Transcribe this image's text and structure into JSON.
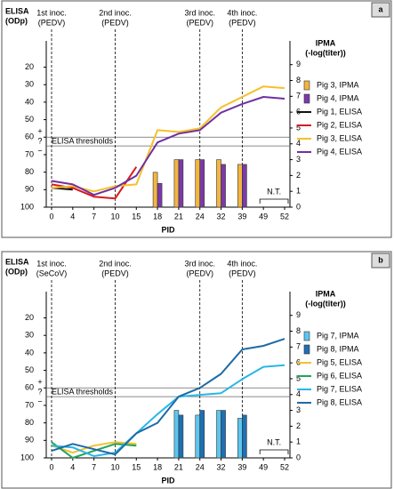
{
  "chart_data": [
    {
      "type": "line",
      "panel": "a",
      "categories": [
        "0",
        "4",
        "7",
        "10",
        "15",
        "18",
        "21",
        "24",
        "32",
        "39",
        "49",
        "52"
      ],
      "xlabel": "PID",
      "ylabel_lines": [
        "ELISA",
        "(ODp)"
      ],
      "y2label_lines": [
        "IPMA",
        "(-log(titer))"
      ],
      "ylim": [
        100,
        5
      ],
      "yticks": [
        20,
        30,
        40,
        50,
        60,
        70,
        80,
        90,
        100
      ],
      "y2lim": [
        0,
        10.5
      ],
      "y2ticks": [
        0,
        1,
        2,
        3,
        4,
        5,
        6,
        7,
        8,
        9
      ],
      "inoculations": [
        {
          "x": "0",
          "label": "1st inoc.",
          "agent": "(PEDV)"
        },
        {
          "x": "10",
          "label": "2nd inoc.",
          "agent": "(PEDV)"
        },
        {
          "x": "24",
          "label": "3rd inoc.",
          "agent": "(PEDV)"
        },
        {
          "x": "39",
          "label": "4th inoc.",
          "agent": "(PEDV)"
        }
      ],
      "thresholds": [
        60,
        65
      ],
      "threshold_label": "ELISA thresholds",
      "threshold_signs": [
        "+",
        "?",
        "−"
      ],
      "not_tested": {
        "text": "N.T.",
        "from": "49",
        "to": "52"
      },
      "legend": "right",
      "series": [
        {
          "name": "Pig 3, IPMA",
          "type": "bar",
          "axis": "y2",
          "color": "#f2b640",
          "values": [
            null,
            null,
            null,
            null,
            null,
            2.2,
            3,
            3,
            3,
            2.7,
            null,
            null
          ]
        },
        {
          "name": "Pig 4, IPMA",
          "type": "bar",
          "axis": "y2",
          "color": "#7a3aa8",
          "values": [
            null,
            null,
            null,
            null,
            null,
            1.5,
            3,
            3,
            2.7,
            2.7,
            null,
            null
          ]
        },
        {
          "name": "Pig 1, ELISA",
          "color": "#111111",
          "values": [
            89,
            90,
            null,
            null,
            null,
            null,
            null,
            null,
            null,
            null,
            null,
            null
          ]
        },
        {
          "name": "Pig 2, ELISA",
          "color": "#d7191c",
          "values": [
            87,
            89,
            94,
            95,
            77,
            null,
            null,
            null,
            null,
            null,
            null,
            null
          ]
        },
        {
          "name": "Pig 3, ELISA",
          "color": "#f5c02a",
          "values": [
            89,
            88,
            91,
            88,
            87,
            56,
            57,
            55,
            43,
            37,
            31,
            32
          ]
        },
        {
          "name": "Pig 4, ELISA",
          "color": "#7030a0",
          "values": [
            85,
            87,
            93,
            89,
            82,
            63,
            58,
            56,
            46,
            41,
            37,
            38
          ]
        }
      ]
    },
    {
      "type": "line",
      "panel": "b",
      "categories": [
        "0",
        "4",
        "7",
        "10",
        "15",
        "18",
        "21",
        "24",
        "32",
        "39",
        "49",
        "52"
      ],
      "xlabel": "PID",
      "ylabel_lines": [
        "ELISA",
        "(ODp)"
      ],
      "y2label_lines": [
        "IPMA",
        "(-log(titer))"
      ],
      "ylim": [
        100,
        5
      ],
      "yticks": [
        20,
        30,
        40,
        50,
        60,
        70,
        80,
        90,
        100
      ],
      "y2lim": [
        0,
        10.5
      ],
      "y2ticks": [
        0,
        1,
        2,
        3,
        4,
        5,
        6,
        7,
        8,
        9
      ],
      "inoculations": [
        {
          "x": "0",
          "label": "1st inoc.",
          "agent": "(SeCoV)"
        },
        {
          "x": "10",
          "label": "2nd inoc.",
          "agent": "(PEDV)"
        },
        {
          "x": "24",
          "label": "3rd inoc.",
          "agent": "(PEDV)"
        },
        {
          "x": "39",
          "label": "4th inoc.",
          "agent": "(PEDV)"
        }
      ],
      "thresholds": [
        60,
        65
      ],
      "threshold_label": "ELISA thresholds",
      "threshold_signs": [
        "+",
        "?",
        "−"
      ],
      "not_tested": {
        "text": "N.T.",
        "from": "49",
        "to": "52"
      },
      "legend": "right",
      "series": [
        {
          "name": "Pig 7, IPMA",
          "type": "bar",
          "axis": "y2",
          "color": "#5cc6ee",
          "values": [
            null,
            null,
            null,
            null,
            null,
            null,
            3,
            2.7,
            3,
            2.5,
            null,
            null
          ]
        },
        {
          "name": "Pig 8, IPMA",
          "type": "bar",
          "axis": "y2",
          "color": "#1f6fb2",
          "values": [
            null,
            null,
            null,
            null,
            null,
            null,
            2.7,
            3,
            3,
            2.7,
            null,
            null
          ]
        },
        {
          "name": "Pig 5, ELISA",
          "color": "#f5c02a",
          "values": [
            93,
            97,
            93,
            91,
            92,
            null,
            null,
            null,
            null,
            null,
            null,
            null
          ]
        },
        {
          "name": "Pig 6, ELISA",
          "color": "#22a45a",
          "values": [
            91,
            100,
            96,
            92,
            93,
            null,
            null,
            null,
            null,
            null,
            null,
            null
          ]
        },
        {
          "name": "Pig 7, ELISA",
          "color": "#29b6e8",
          "values": [
            93,
            94,
            99,
            97,
            86,
            75,
            65,
            64,
            63,
            55,
            48,
            47
          ]
        },
        {
          "name": "Pig 8, ELISA",
          "color": "#1d6aa5",
          "values": [
            96,
            92,
            95,
            98,
            86,
            80,
            65,
            60,
            52,
            38,
            36,
            32
          ]
        }
      ]
    }
  ]
}
